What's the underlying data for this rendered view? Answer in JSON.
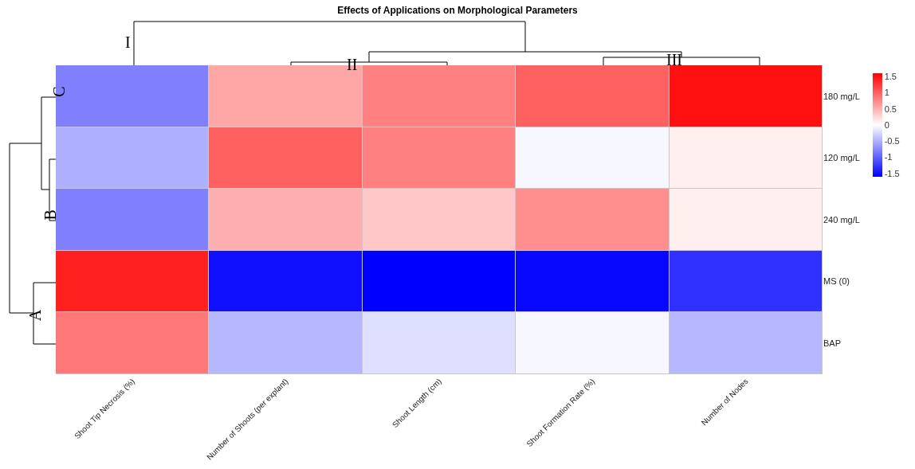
{
  "chart_data": {
    "type": "heatmap",
    "title": "Effects of Applications on Morphological Parameters",
    "categories": [
      "Shoot Tip Necrosis (%)",
      "Number of Shoots (per explant)",
      "Shoot Length (cm)",
      "Shoot Formation Rate (%)",
      "Number of Nodes"
    ],
    "y_categories": [
      "180 mg/L",
      "120 mg/L",
      "240 mg/L",
      "MS (0)",
      "BAP"
    ],
    "cells": [
      [
        -0.8,
        0.55,
        0.8,
        1.0,
        1.5
      ],
      [
        -0.5,
        1.0,
        0.8,
        -0.05,
        0.1
      ],
      [
        -0.8,
        0.5,
        0.35,
        0.7,
        0.1
      ],
      [
        1.4,
        -1.5,
        -1.6,
        -1.55,
        -1.3
      ],
      [
        0.85,
        -0.45,
        -0.2,
        -0.05,
        -0.45
      ]
    ],
    "clim": [
      -1.6,
      1.6
    ],
    "cticks": [
      -1.5,
      -1,
      -0.5,
      0,
      0.5,
      1,
      1.5
    ],
    "annotations": [
      "I",
      "II",
      "III",
      "C",
      "B",
      "A"
    ]
  }
}
